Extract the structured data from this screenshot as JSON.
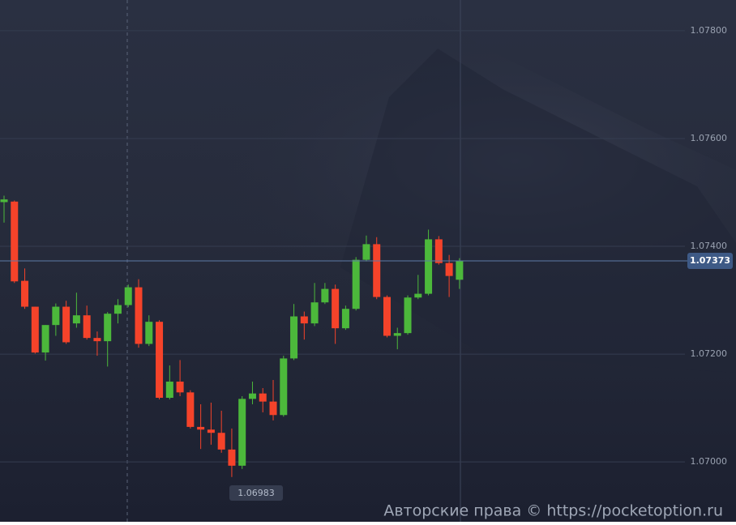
{
  "chart_data": {
    "type": "candlestick",
    "up_color": "#4cb83b",
    "down_color": "#f5432a",
    "open": [
      1.07482,
      1.07483,
      1.07336,
      1.07288,
      1.07203,
      1.07254,
      1.07288,
      1.07257,
      1.07272,
      1.0723,
      1.07224,
      1.07275,
      1.07291,
      1.07324,
      1.07219,
      1.0726,
      1.07119,
      1.07149,
      1.07129,
      1.07065,
      1.0706,
      1.07054,
      1.07023,
      1.06993,
      1.07117,
      1.07127,
      1.07112,
      1.07087,
      1.07192,
      1.0727,
      1.07257,
      1.07296,
      1.07321,
      1.07248,
      1.07284,
      1.07375,
      1.07404,
      1.07306,
      1.07234,
      1.07239,
      1.07305,
      1.07312,
      1.07413,
      1.07369,
      1.07338
    ],
    "high": [
      1.07494,
      1.07485,
      1.07359,
      1.07288,
      1.07254,
      1.07294,
      1.07299,
      1.07314,
      1.0729,
      1.07242,
      1.07278,
      1.07302,
      1.07329,
      1.07339,
      1.07272,
      1.07263,
      1.07179,
      1.07189,
      1.07133,
      1.07107,
      1.0711,
      1.07095,
      1.07062,
      1.07122,
      1.07149,
      1.07137,
      1.07152,
      1.07197,
      1.07293,
      1.07279,
      1.07332,
      1.07332,
      1.07329,
      1.0729,
      1.0738,
      1.0742,
      1.07417,
      1.07309,
      1.07249,
      1.07309,
      1.07347,
      1.07431,
      1.07419,
      1.07384,
      1.07378
    ],
    "low": [
      1.07444,
      1.07332,
      1.07284,
      1.07201,
      1.07188,
      1.07234,
      1.07219,
      1.07249,
      1.07227,
      1.07197,
      1.07177,
      1.07257,
      1.07287,
      1.07212,
      1.07215,
      1.07116,
      1.07116,
      1.07122,
      1.07062,
      1.07024,
      1.07032,
      1.07017,
      1.06972,
      1.06987,
      1.07107,
      1.07092,
      1.07077,
      1.07084,
      1.07189,
      1.07227,
      1.07252,
      1.07293,
      1.07219,
      1.07245,
      1.07281,
      1.07372,
      1.07302,
      1.07231,
      1.07209,
      1.07236,
      1.07302,
      1.07309,
      1.07366,
      1.07306,
      1.07321
    ],
    "close": [
      1.07487,
      1.07335,
      1.07288,
      1.07203,
      1.07254,
      1.07288,
      1.07222,
      1.07272,
      1.0723,
      1.07224,
      1.07275,
      1.07291,
      1.07324,
      1.07219,
      1.0726,
      1.07119,
      1.07149,
      1.07129,
      1.07065,
      1.0706,
      1.07054,
      1.07023,
      1.06993,
      1.07117,
      1.07127,
      1.07112,
      1.07087,
      1.07192,
      1.0727,
      1.07257,
      1.07296,
      1.07321,
      1.07248,
      1.07284,
      1.07375,
      1.07404,
      1.07306,
      1.07234,
      1.07239,
      1.07305,
      1.07312,
      1.07413,
      1.07369,
      1.07345,
      1.07373
    ],
    "ylim": [
      1.06889,
      1.07857
    ],
    "yticks": [
      {
        "value": 1.078,
        "label": "1.07800"
      },
      {
        "value": 1.076,
        "label": "1.07600"
      },
      {
        "value": 1.074,
        "label": "1.07400"
      },
      {
        "value": 1.072,
        "label": "1.07200"
      },
      {
        "value": 1.07,
        "label": "1.07000"
      }
    ],
    "grid": true,
    "current_price": {
      "value": 1.07373,
      "label": "1.07373"
    },
    "crosshair_label": "1.06983",
    "watermark": "Авторские права © https://pocketoption.ru"
  }
}
